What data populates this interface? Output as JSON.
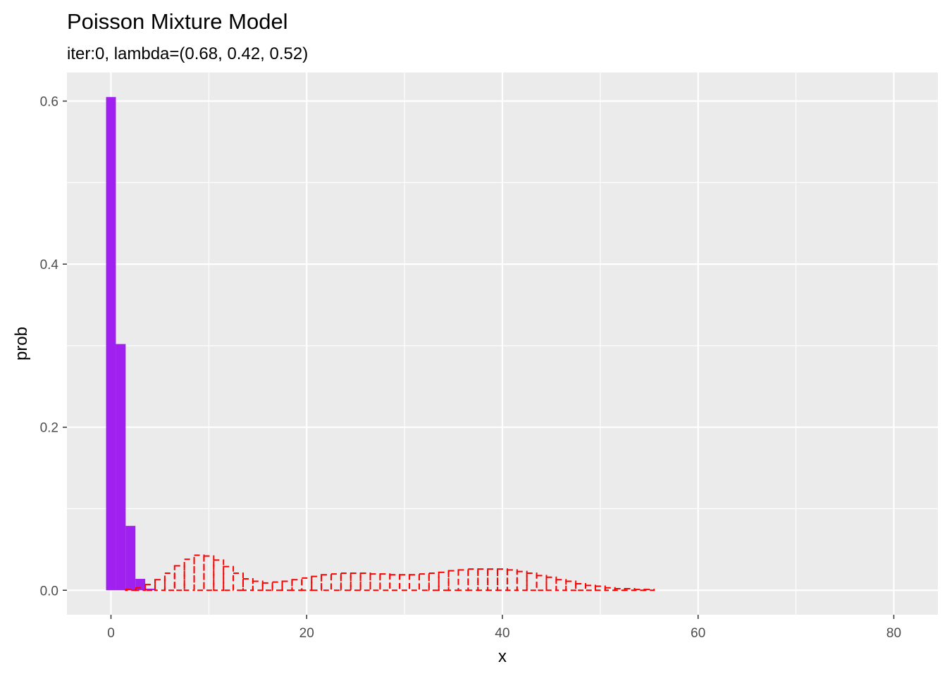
{
  "chart_data": {
    "type": "bar",
    "title": "Poisson Mixture Model",
    "subtitle": "iter:0, lambda=(0.68, 0.42, 0.52)",
    "xlabel": "x",
    "ylabel": "prob",
    "xlim": [
      -4.5,
      84.5
    ],
    "ylim": [
      -0.03,
      0.635
    ],
    "x_ticks": [
      0,
      20,
      40,
      60,
      80
    ],
    "y_ticks": [
      0.0,
      0.2,
      0.4,
      0.6
    ],
    "x_tick_labels": [
      "0",
      "20",
      "40",
      "60",
      "80"
    ],
    "y_tick_labels": [
      "0.0",
      "0.2",
      "0.4",
      "0.6"
    ],
    "grid": true,
    "colors": {
      "panel": "#ebebeb",
      "grid_major": "#ffffff",
      "fill_series": "#a020f0",
      "outline_series": "#ff0000"
    },
    "series": [
      {
        "style": "filled",
        "x": [
          0,
          1,
          2,
          3,
          4
        ],
        "values": [
          0.605,
          0.302,
          0.079,
          0.014,
          0.002
        ]
      },
      {
        "style": "dashed-outline",
        "x": [
          0,
          1,
          2,
          3,
          4,
          5,
          6,
          7,
          8,
          9,
          10,
          11,
          12,
          13,
          14,
          15,
          16,
          17,
          18,
          19,
          20,
          21,
          22,
          23,
          24,
          25,
          26,
          27,
          28,
          29,
          30,
          31,
          32,
          33,
          34,
          35,
          36,
          37,
          38,
          39,
          40,
          41,
          42,
          43,
          44,
          45,
          46,
          47,
          48,
          49,
          50,
          51,
          52,
          53,
          54,
          55,
          56,
          57,
          58,
          59,
          60,
          61,
          62,
          63,
          64,
          65,
          66,
          67,
          68,
          69,
          70,
          71,
          72,
          73,
          74,
          75,
          76,
          77,
          78,
          79,
          80
        ],
        "values": [
          0.0,
          0.0,
          0.001,
          0.003,
          0.007,
          0.013,
          0.021,
          0.03,
          0.038,
          0.043,
          0.042,
          0.037,
          0.029,
          0.021,
          0.014,
          0.011,
          0.009,
          0.01,
          0.011,
          0.013,
          0.015,
          0.017,
          0.019,
          0.02,
          0.021,
          0.021,
          0.021,
          0.02,
          0.02,
          0.019,
          0.019,
          0.019,
          0.02,
          0.021,
          0.022,
          0.024,
          0.025,
          0.026,
          0.026,
          0.026,
          0.026,
          0.025,
          0.023,
          0.021,
          0.018,
          0.016,
          0.013,
          0.011,
          0.008,
          0.006,
          0.005,
          0.003,
          0.002,
          0.002,
          0.001,
          0.001,
          0.0,
          0.0,
          0.0,
          0.0,
          0.0,
          0.0,
          0.0,
          0.0,
          0.0,
          0.0,
          0.0,
          0.0,
          0.0,
          0.0,
          0.0,
          0.0,
          0.0,
          0.0,
          0.0,
          0.0,
          0.0,
          0.0,
          0.0,
          0.0,
          0.0
        ]
      }
    ]
  }
}
